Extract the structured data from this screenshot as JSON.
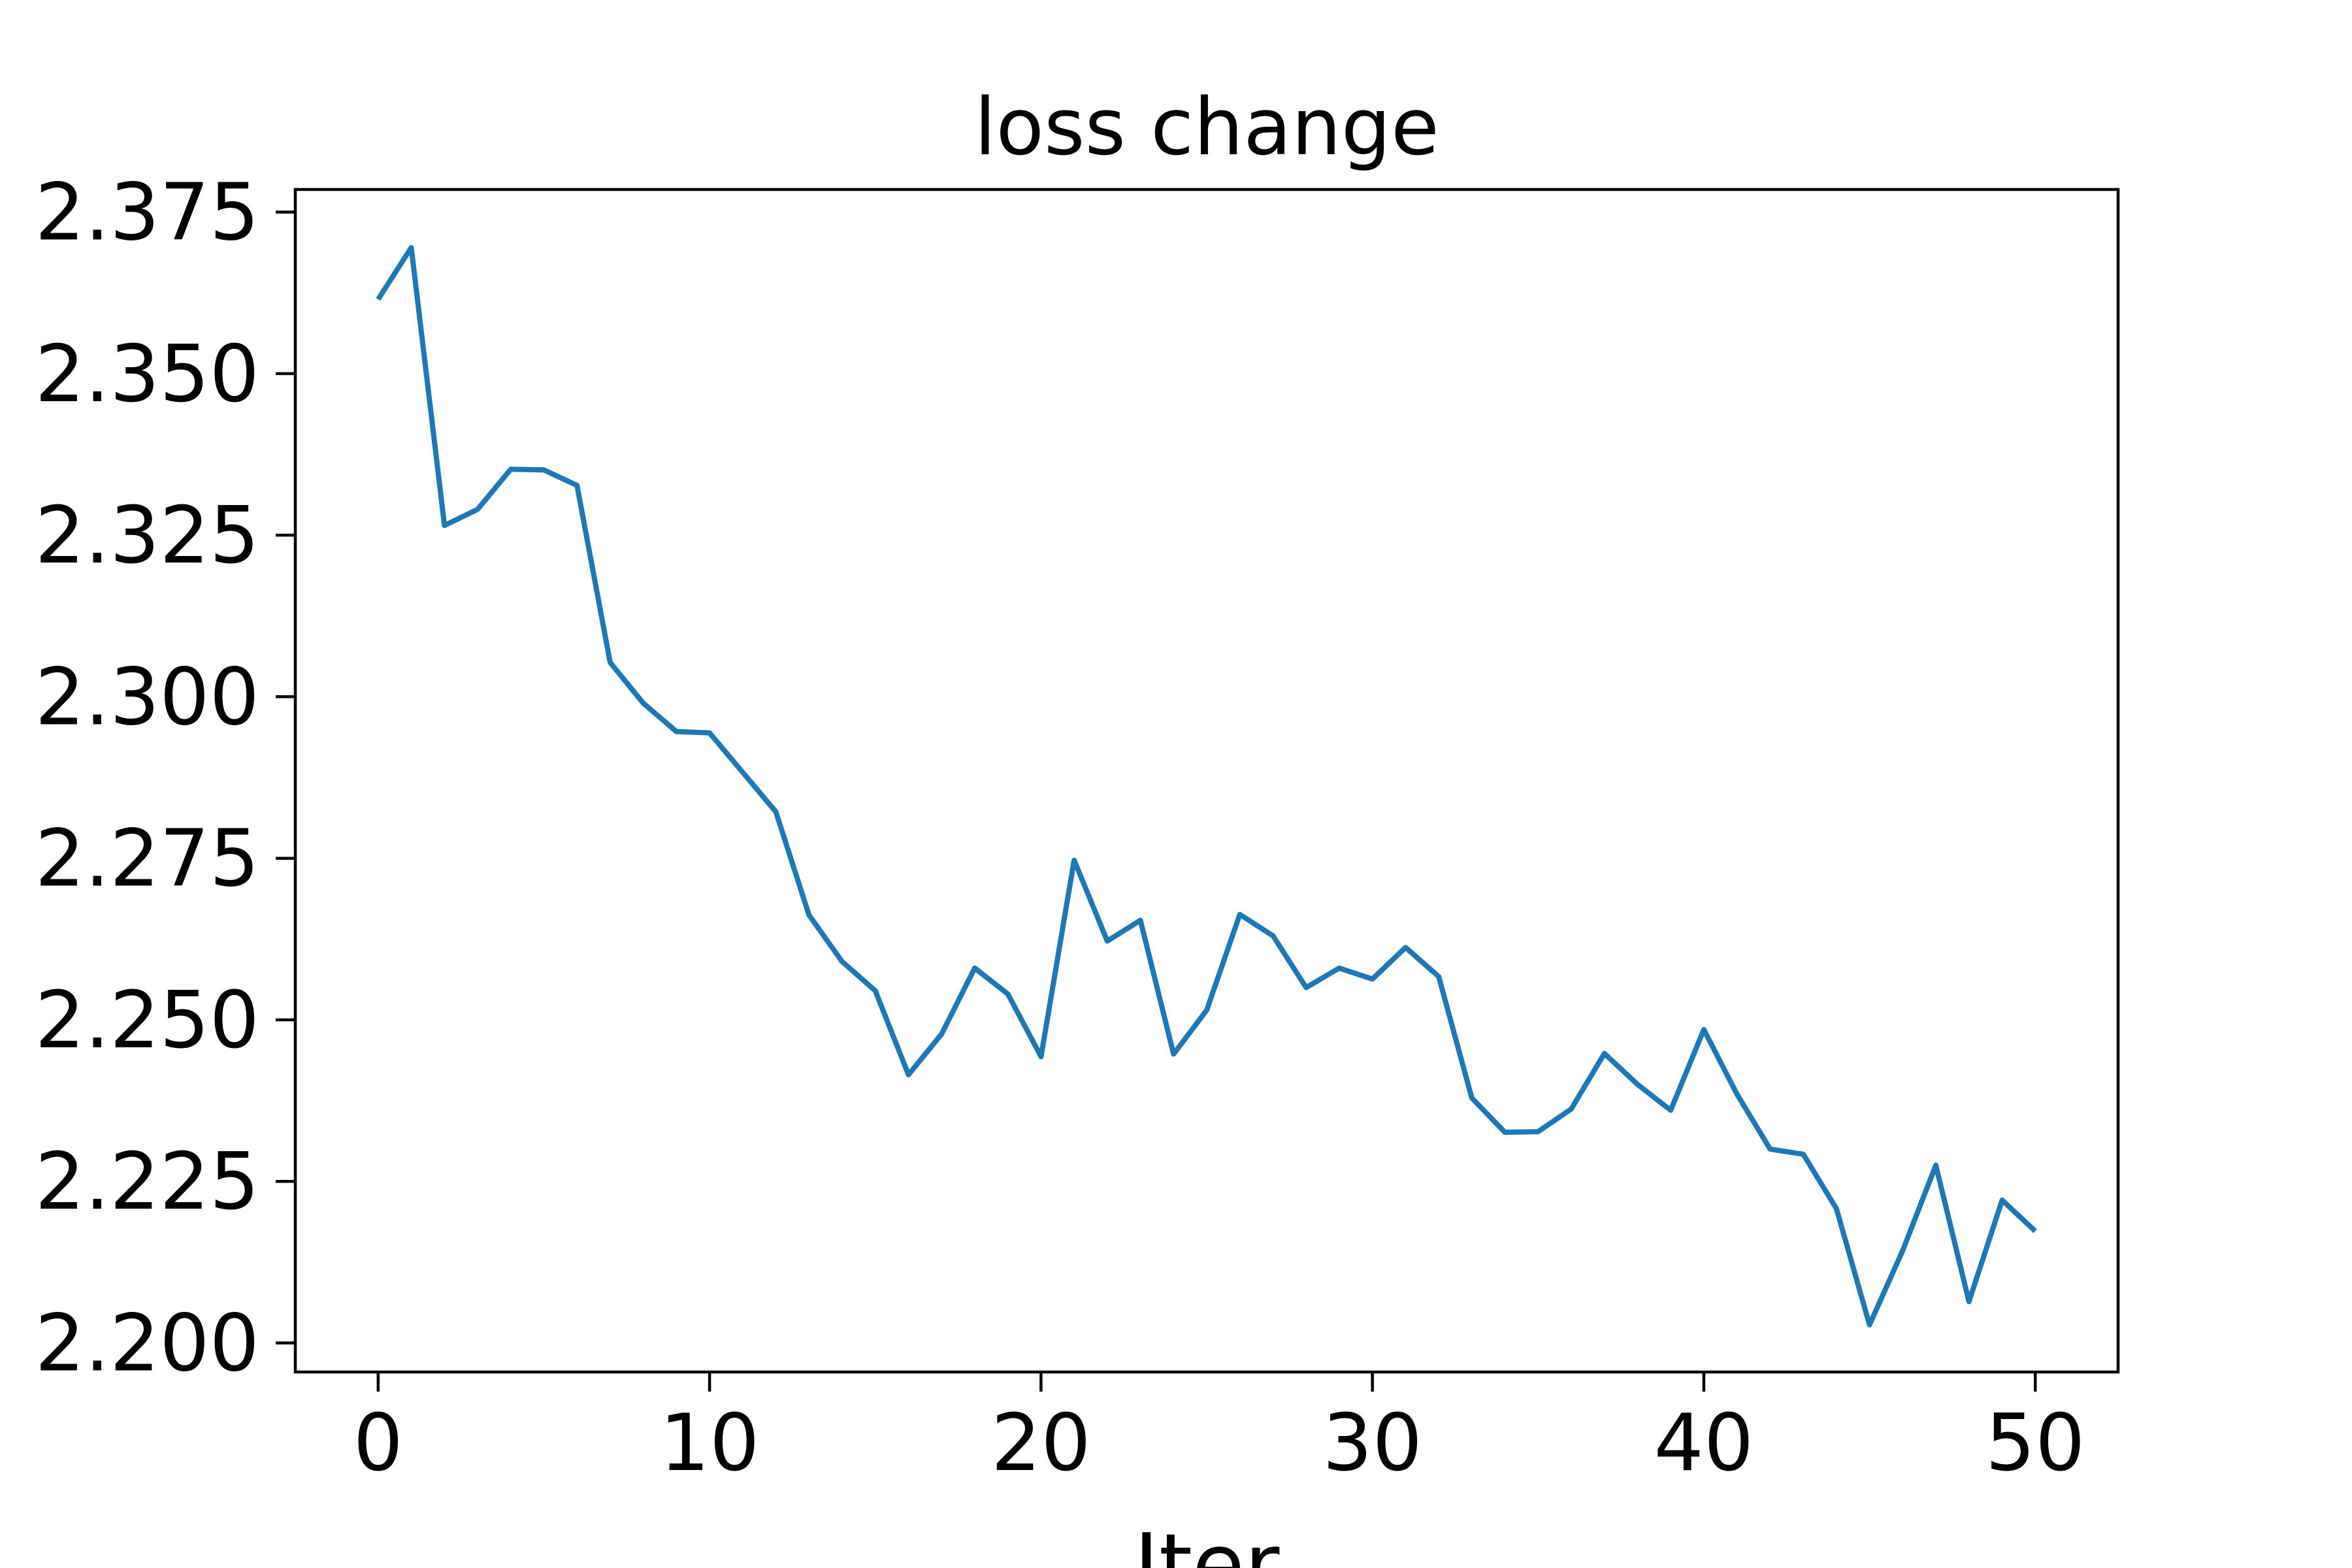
{
  "chart_data": {
    "type": "line",
    "title": "loss change",
    "xlabel": "Iter",
    "ylabel": "",
    "xlim": [
      -2.5,
      52.5
    ],
    "ylim": [
      2.1955,
      2.3785
    ],
    "x_ticks": [
      0,
      10,
      20,
      30,
      40,
      50
    ],
    "x_tick_labels": [
      "0",
      "10",
      "20",
      "30",
      "40",
      "50"
    ],
    "y_ticks": [
      2.2,
      2.225,
      2.25,
      2.275,
      2.3,
      2.325,
      2.35,
      2.375
    ],
    "y_tick_labels": [
      "2.200",
      "2.225",
      "2.250",
      "2.275",
      "2.300",
      "2.325",
      "2.350",
      "2.375"
    ],
    "grid": false,
    "legend": "none",
    "series": [
      {
        "color": "#1f77b4",
        "x": [
          0,
          1,
          2,
          3,
          4,
          5,
          6,
          7,
          8,
          9,
          10,
          11,
          12,
          13,
          14,
          15,
          16,
          17,
          18,
          19,
          20,
          21,
          22,
          23,
          24,
          25,
          26,
          27,
          28,
          29,
          30,
          31,
          32,
          33,
          34,
          35,
          36,
          37,
          38,
          39,
          40,
          41,
          42,
          43,
          44,
          45,
          46,
          47,
          48,
          49,
          50
        ],
        "y": [
          2.3615,
          2.3695,
          2.3265,
          2.329,
          2.3352,
          2.3351,
          2.3327,
          2.3053,
          2.299,
          2.2946,
          2.2944,
          2.2883,
          2.2822,
          2.2662,
          2.259,
          2.2545,
          2.2415,
          2.2478,
          2.258,
          2.254,
          2.2443,
          2.2747,
          2.2622,
          2.2654,
          2.2447,
          2.2515,
          2.2663,
          2.263,
          2.255,
          2.258,
          2.2563,
          2.2612,
          2.2567,
          2.2379,
          2.2326,
          2.2327,
          2.2362,
          2.2448,
          2.24,
          2.236,
          2.2485,
          2.2385,
          2.23,
          2.2292,
          2.2208,
          2.2028,
          2.2143,
          2.2275,
          2.2064,
          2.2221,
          2.2173
        ]
      }
    ]
  }
}
